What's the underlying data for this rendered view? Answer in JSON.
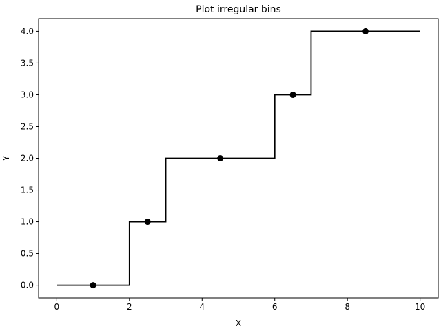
{
  "chart_data": {
    "type": "line",
    "title": "Plot irregular bins",
    "xlabel": "X",
    "ylabel": "Y",
    "xlim": [
      -0.5,
      10.5
    ],
    "ylim": [
      -0.2,
      4.2
    ],
    "xticks": [
      0,
      2,
      4,
      6,
      8,
      10
    ],
    "xtick_labels": [
      "0",
      "2",
      "4",
      "6",
      "8",
      "10"
    ],
    "yticks": [
      0.0,
      0.5,
      1.0,
      1.5,
      2.0,
      2.5,
      3.0,
      3.5,
      4.0
    ],
    "ytick_labels": [
      "0.0",
      "0.5",
      "1.0",
      "1.5",
      "2.0",
      "2.5",
      "3.0",
      "3.5",
      "4.0"
    ],
    "grid": false,
    "series": [
      {
        "kind": "step",
        "x": [
          0,
          2,
          2,
          3,
          3,
          6,
          6,
          7,
          7,
          10
        ],
        "y": [
          0,
          0,
          1,
          1,
          2,
          2,
          3,
          3,
          4,
          4
        ],
        "color": "#000000"
      },
      {
        "kind": "scatter",
        "x": [
          1,
          2.5,
          4.5,
          6.5,
          8.5
        ],
        "y": [
          0,
          1,
          2,
          3,
          4
        ],
        "color": "#000000"
      }
    ]
  }
}
